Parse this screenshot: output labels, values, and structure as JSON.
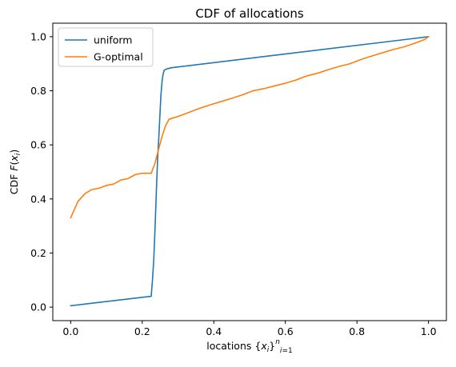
{
  "chart_data": {
    "type": "line",
    "title": "CDF of allocations",
    "xlabel": "locations {x_i}_{i=1}^n",
    "ylabel": "CDF F(x_i)",
    "xlim": [
      -0.05,
      1.05
    ],
    "ylim": [
      -0.05,
      1.05
    ],
    "xticks": [
      0.0,
      0.2,
      0.4,
      0.6,
      0.8,
      1.0
    ],
    "xtick_labels": [
      "0.0",
      "0.2",
      "0.4",
      "0.6",
      "0.8",
      "1.0"
    ],
    "yticks": [
      0.0,
      0.2,
      0.4,
      0.6,
      0.8,
      1.0
    ],
    "ytick_labels": [
      "0.0",
      "0.2",
      "0.4",
      "0.6",
      "0.8",
      "1.0"
    ],
    "grid": false,
    "legend_position": "upper-left",
    "series": [
      {
        "name": "uniform",
        "color": "#1f77b4",
        "x": [
          0.0,
          0.225,
          0.228,
          0.232,
          0.236,
          0.24,
          0.243,
          0.246,
          0.249,
          0.252,
          0.255,
          0.258,
          0.261,
          0.264,
          0.267,
          0.272,
          0.28,
          1.0
        ],
        "y": [
          0.005,
          0.04,
          0.09,
          0.17,
          0.3,
          0.45,
          0.55,
          0.62,
          0.7,
          0.78,
          0.83,
          0.86,
          0.875,
          0.878,
          0.88,
          0.882,
          0.885,
          1.0
        ]
      },
      {
        "name": "G-optimal",
        "color": "#ff7f0e",
        "x": [
          0.0,
          0.02,
          0.04,
          0.06,
          0.08,
          0.1,
          0.12,
          0.14,
          0.16,
          0.18,
          0.2,
          0.225,
          0.235,
          0.245,
          0.255,
          0.265,
          0.275,
          0.3,
          0.33,
          0.36,
          0.39,
          0.42,
          0.45,
          0.48,
          0.51,
          0.54,
          0.57,
          0.6,
          0.63,
          0.66,
          0.69,
          0.72,
          0.75,
          0.78,
          0.81,
          0.84,
          0.87,
          0.9,
          0.93,
          0.96,
          0.99,
          1.0
        ],
        "y": [
          0.33,
          0.39,
          0.42,
          0.435,
          0.44,
          0.45,
          0.455,
          0.47,
          0.475,
          0.49,
          0.495,
          0.495,
          0.53,
          0.58,
          0.63,
          0.67,
          0.695,
          0.705,
          0.72,
          0.735,
          0.748,
          0.76,
          0.772,
          0.785,
          0.8,
          0.808,
          0.818,
          0.828,
          0.84,
          0.855,
          0.865,
          0.878,
          0.89,
          0.9,
          0.915,
          0.928,
          0.94,
          0.952,
          0.962,
          0.975,
          0.99,
          1.0
        ]
      }
    ]
  }
}
